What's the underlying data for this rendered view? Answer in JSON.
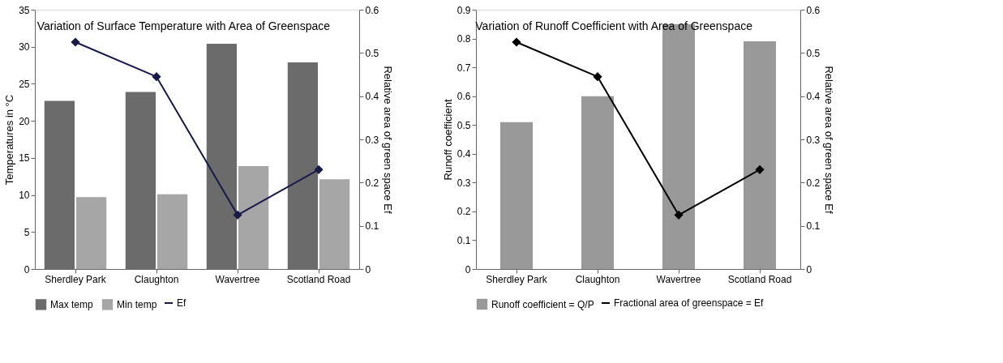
{
  "chart_data": [
    {
      "type": "bar",
      "title": "Variation of Surface Temperature with Area of Greenspace",
      "ylabel": "Temperatures in °C",
      "y2label": "Relative area of green space Ef",
      "categories": [
        "Sherdley Park",
        "Claughton",
        "Wavertree",
        "Scotland Road"
      ],
      "series": [
        {
          "name": "Max temp",
          "color": "#6b6b6b",
          "values": [
            22.7,
            23.9,
            30.4,
            27.9
          ]
        },
        {
          "name": "Min temp",
          "color": "#a6a6a6",
          "values": [
            9.7,
            10.1,
            13.9,
            12.1
          ]
        },
        {
          "name": "Ef",
          "type": "line",
          "axis": "y2",
          "color": "#1a1a4a",
          "values": [
            0.525,
            0.445,
            0.125,
            0.23
          ]
        }
      ],
      "ylim": [
        0,
        35
      ],
      "yticks": [
        0,
        5,
        10,
        15,
        20,
        25,
        30,
        35
      ],
      "y2lim": [
        0,
        0.6
      ],
      "y2ticks": [
        0,
        0.1,
        0.2,
        0.3,
        0.4,
        0.5,
        0.6
      ],
      "grid": false,
      "legend": "bottom",
      "marker": "diamond",
      "line_style": "solid"
    },
    {
      "type": "bar",
      "title": "Variation of Runoff Coefficient with Area of Greenspace",
      "ylabel": "Runoff coefficient",
      "y2label": "Relative area of green space Ef",
      "categories": [
        "Sherdley Park",
        "Claughton",
        "Wavertree",
        "Scotland Road"
      ],
      "series": [
        {
          "name": "Runoff coefficient = Q/P",
          "color": "#999999",
          "values": [
            0.51,
            0.6,
            0.85,
            0.79
          ]
        },
        {
          "name": "Fractional area of greenspace = Ef",
          "type": "line",
          "axis": "y2",
          "color": "#000000",
          "values": [
            0.525,
            0.445,
            0.125,
            0.23
          ]
        }
      ],
      "ylim": [
        0,
        0.9
      ],
      "yticks": [
        0,
        0.1,
        0.2,
        0.3,
        0.4,
        0.5,
        0.6,
        0.7,
        0.8,
        0.9
      ],
      "y2lim": [
        0,
        0.6
      ],
      "y2ticks": [
        0,
        0.1,
        0.2,
        0.3,
        0.4,
        0.5,
        0.6
      ],
      "grid": false,
      "legend": "bottom",
      "marker": "diamond",
      "line_style": "solid"
    }
  ]
}
